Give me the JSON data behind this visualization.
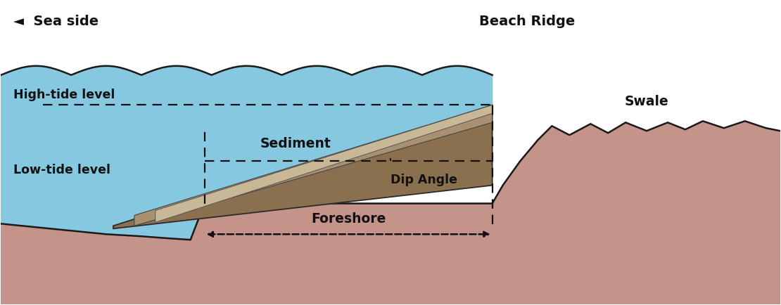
{
  "background_color": "#ffffff",
  "sea_color": "#85c8e0",
  "ground_color": "#c4938a",
  "sediment_dark_color": "#8b7050",
  "sediment_mid_color": "#a89070",
  "sediment_light_color": "#c8b898",
  "wave_outline": "#1a1a1a",
  "ground_outline": "#1a1a1a",
  "label_fontsize": 12.5,
  "title_fontsize": 14,
  "sea_side_label": "◄  Sea side",
  "beach_ridge_label": "Beach Ridge",
  "high_tide_label": "High-tide level",
  "low_tide_label": "Low-tide level",
  "sediment_label": "Sediment",
  "dip_angle_label": "Dip Angle",
  "foreshore_label": "Foreshore",
  "swale_label": "Swale",
  "figsize": [
    11.1,
    4.34
  ],
  "dpi": 100
}
